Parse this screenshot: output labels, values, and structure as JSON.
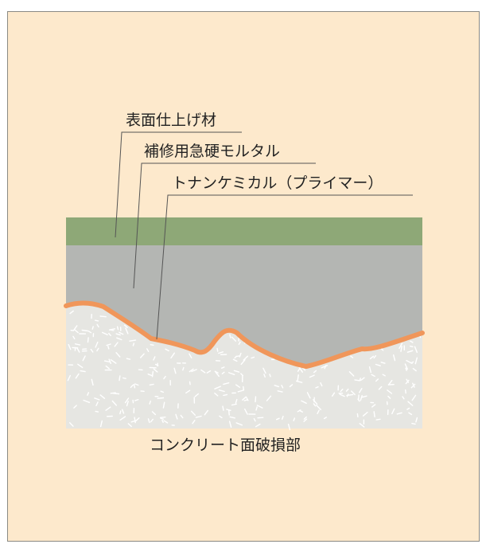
{
  "labels": {
    "surface_finish": "表面仕上げ材",
    "repair_mortar": "補修用急硬モルタル",
    "primer": "トナンケミカル（プライマー）"
  },
  "caption": "コンクリート面破損部",
  "colors": {
    "panel_background": "#fde9cc",
    "panel_border": "#8a8a84",
    "surface_layer": "#8ea877",
    "mortar_layer": "#b4b6b3",
    "primer_line": "#f0965a",
    "concrete_base": "#e6e6e2",
    "leader_line": "#555555"
  }
}
